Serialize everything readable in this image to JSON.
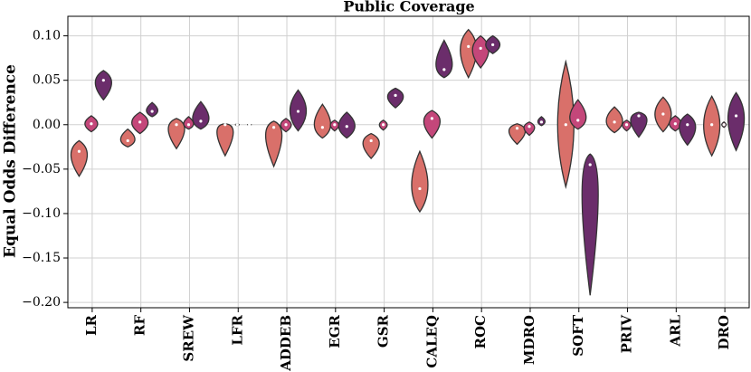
{
  "chart_data": {
    "type": "violin",
    "title": "Public Coverage",
    "y_label": "Equal Odds Difference",
    "categories": [
      "LR",
      "RF",
      "SREW",
      "LFR",
      "ADDEB",
      "EGR",
      "GSR",
      "CALEQ",
      "ROC",
      "MDRO",
      "SOFT",
      "PRIV",
      "ARL",
      "DRO"
    ],
    "ylim": [
      -0.206,
      0.122
    ],
    "yticks": [
      {
        "value": 0.1,
        "label": "0.10"
      },
      {
        "value": 0.05,
        "label": "0.05"
      },
      {
        "value": 0,
        "label": "0.00"
      },
      {
        "value": -0.05,
        "label": "−0.05"
      },
      {
        "value": -0.1,
        "label": "−0.10"
      },
      {
        "value": -0.15,
        "label": "−0.15"
      },
      {
        "value": -0.2,
        "label": "−0.20"
      }
    ],
    "grid": true,
    "series": [
      {
        "color": "#d9706a",
        "min": [
          -0.058,
          -0.025,
          -0.027,
          -0.035,
          -0.047,
          -0.015,
          -0.038,
          -0.098,
          0.053,
          -0.022,
          -0.07,
          -0.009,
          -0.008,
          -0.035
        ],
        "median": [
          -0.03,
          -0.018,
          0.0,
          0.0,
          -0.003,
          -0.003,
          -0.018,
          -0.072,
          0.088,
          -0.004,
          0.0,
          0.003,
          0.012,
          0.0
        ],
        "max": [
          -0.018,
          -0.005,
          0.007,
          0.001,
          0.004,
          0.023,
          -0.01,
          -0.03,
          0.107,
          0.001,
          0.071,
          0.02,
          0.031,
          0.032
        ]
      },
      {
        "color": "#c4477a",
        "min": [
          -0.008,
          -0.01,
          -0.005,
          -0.001,
          -0.008,
          -0.007,
          -0.006,
          -0.015,
          0.064,
          -0.012,
          -0.005,
          -0.007,
          -0.007,
          -0.003
        ],
        "median": [
          0.001,
          0.003,
          0.0,
          0.0,
          0.0,
          0.0,
          0.0,
          0.007,
          0.086,
          -0.002,
          0.005,
          0.0,
          0.001,
          0.0
        ],
        "max": [
          0.01,
          0.014,
          0.009,
          0.001,
          0.007,
          0.005,
          0.005,
          0.016,
          0.1,
          0.003,
          0.028,
          0.005,
          0.01,
          0.003
        ]
      },
      {
        "color": "#6b2d6b",
        "min": [
          0.028,
          0.009,
          -0.005,
          0,
          -0.007,
          -0.015,
          0.019,
          0.053,
          0.08,
          -0.001,
          -0.192,
          -0.014,
          -0.023,
          -0.029
        ],
        "median": [
          0.05,
          0.015,
          0.004,
          0,
          0.015,
          -0.002,
          0.033,
          0.062,
          0.09,
          0.003,
          -0.045,
          0.01,
          0.0,
          0.01
        ],
        "max": [
          0.061,
          0.025,
          0.026,
          0,
          0.039,
          0.014,
          0.041,
          0.095,
          0.1,
          0.009,
          -0.033,
          0.014,
          0.012,
          0.036
        ]
      }
    ]
  }
}
